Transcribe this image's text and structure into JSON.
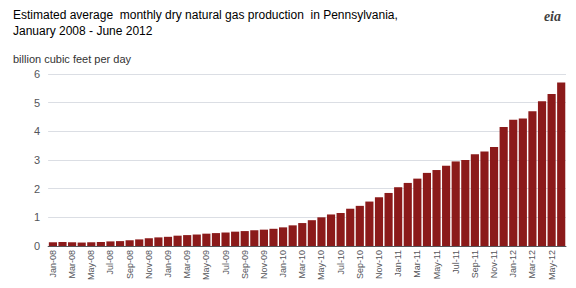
{
  "chart_data": {
    "type": "bar",
    "title": "Estimated average  monthly dry natural gas production  in Pennsylvania,",
    "subtitle": "January 2008 - June 2012",
    "ylabel": "billion cubic feet per day",
    "annotations": [
      "eia"
    ],
    "categories": [
      "Jan-08",
      null,
      "Mar-08",
      null,
      "May-08",
      null,
      "Jul-08",
      null,
      "Sep-08",
      null,
      "Nov-08",
      null,
      "Jan-09",
      null,
      "Mar-09",
      null,
      "May-09",
      null,
      "Jul-09",
      null,
      "Sep-09",
      null,
      "Nov-09",
      null,
      "Jan-10",
      null,
      "Mar-10",
      null,
      "May-10",
      null,
      "Jul-10",
      null,
      "Sep-10",
      null,
      "Nov-10",
      null,
      "Jan-11",
      null,
      "Mar-11",
      null,
      "May-11",
      null,
      "Jul-11",
      null,
      "Sep-11",
      null,
      "Nov-11",
      null,
      "Jan-12",
      null,
      "Mar-12",
      null,
      "May-12",
      null
    ],
    "values": [
      0.13,
      0.14,
      0.13,
      0.12,
      0.13,
      0.14,
      0.16,
      0.17,
      0.2,
      0.23,
      0.27,
      0.3,
      0.32,
      0.36,
      0.38,
      0.4,
      0.43,
      0.45,
      0.47,
      0.5,
      0.52,
      0.55,
      0.57,
      0.6,
      0.65,
      0.72,
      0.8,
      0.9,
      1.0,
      1.1,
      1.15,
      1.3,
      1.4,
      1.55,
      1.7,
      1.85,
      2.05,
      2.2,
      2.35,
      2.55,
      2.65,
      2.8,
      2.95,
      3.0,
      3.2,
      3.3,
      3.45,
      4.15,
      4.4,
      4.45,
      4.7,
      5.05,
      5.3,
      5.7
    ],
    "color": "#8B1A1A",
    "ylim": [
      0,
      6
    ],
    "yticks": [
      0,
      1,
      2,
      3,
      4,
      5,
      6
    ],
    "grid": true
  }
}
